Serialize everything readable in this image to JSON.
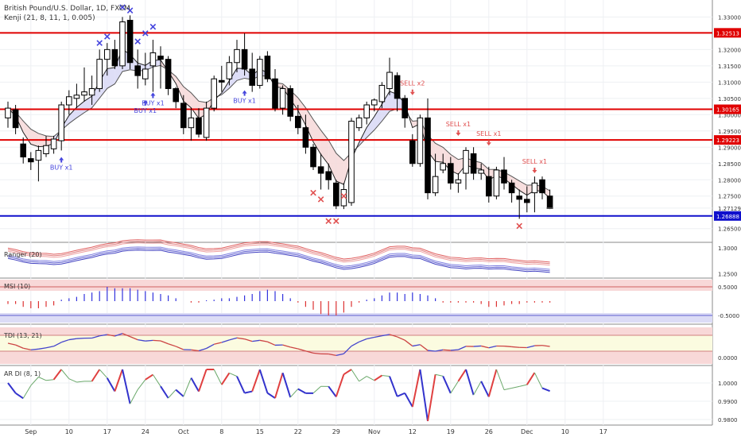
{
  "header": {
    "title": "British Pound/U.S. Dollar, 1D, FXCM",
    "study": "Kenji (21, 8, 11, 1, 0.005)"
  },
  "colors": {
    "up": "#ffffff",
    "down": "#000000",
    "resistance": "#e00000",
    "support": "#1010cc",
    "buy": "#4444dd",
    "sell": "#e05050",
    "bull_cloud": "#d8d8f6",
    "bear_cloud": "#f6d8d8",
    "pos_bar": "#3333dd",
    "neg_bar": "#dd3333"
  },
  "price_axis": {
    "ticks": [
      "1.33000",
      "1.32500",
      "1.32000",
      "1.31500",
      "1.31000",
      "1.30500",
      "1.30000",
      "1.29500",
      "1.29000",
      "1.28500",
      "1.28000",
      "1.27500",
      "1.27129",
      "1.26500"
    ],
    "labels": [
      {
        "text": "1.32513",
        "color": "#e00000"
      },
      {
        "text": "1.30165",
        "color": "#e00000"
      },
      {
        "text": "1.29223",
        "color": "#e00000"
      },
      {
        "text": "1.26888",
        "color": "#1010cc"
      }
    ]
  },
  "x_axis": {
    "ticks": [
      "Sep",
      "10",
      "17",
      "24",
      "Oct",
      "8",
      "15",
      "22",
      "29",
      "Nov",
      "12",
      "19",
      "26",
      "Dec",
      "10",
      "17"
    ]
  },
  "panels": {
    "ranger": {
      "title": "Ranger (20)",
      "ticks": [
        "1.3000",
        "1.2500"
      ]
    },
    "msi": {
      "title": "MSI (10)",
      "ticks": [
        "0.5000",
        "-0.5000"
      ]
    },
    "tdi": {
      "title": "TDI (13, 21)",
      "ticks": [
        "0.0000"
      ]
    },
    "ardi": {
      "title": "AR DI (8, 1)",
      "ticks": [
        "1.0000",
        "0.9900",
        "0.9800"
      ]
    }
  },
  "chart_data": {
    "type": "candlestick",
    "title": "British Pound/U.S. Dollar, 1D, FXCM",
    "y_range": [
      1.262,
      1.334
    ],
    "levels": [
      {
        "value": 1.32513,
        "kind": "resistance"
      },
      {
        "value": 1.30165,
        "kind": "resistance"
      },
      {
        "value": 1.29223,
        "kind": "resistance"
      },
      {
        "value": 1.26888,
        "kind": "support"
      }
    ],
    "last_price": 1.27129,
    "candles": [
      {
        "o": 1.299,
        "h": 1.304,
        "l": 1.296,
        "c": 1.302
      },
      {
        "o": 1.3015,
        "h": 1.303,
        "l": 1.294,
        "c": 1.296
      },
      {
        "o": 1.291,
        "h": 1.293,
        "l": 1.285,
        "c": 1.287
      },
      {
        "o": 1.2865,
        "h": 1.2885,
        "l": 1.283,
        "c": 1.2855
      },
      {
        "o": 1.286,
        "h": 1.2905,
        "l": 1.2795,
        "c": 1.289
      },
      {
        "o": 1.288,
        "h": 1.2935,
        "l": 1.287,
        "c": 1.2905
      },
      {
        "o": 1.2895,
        "h": 1.2935,
        "l": 1.288,
        "c": 1.2925
      },
      {
        "o": 1.292,
        "h": 1.304,
        "l": 1.289,
        "c": 1.303
      },
      {
        "o": 1.303,
        "h": 1.3075,
        "l": 1.3,
        "c": 1.3055
      },
      {
        "o": 1.305,
        "h": 1.3095,
        "l": 1.302,
        "c": 1.306
      },
      {
        "o": 1.306,
        "h": 1.3145,
        "l": 1.304,
        "c": 1.307
      },
      {
        "o": 1.306,
        "h": 1.312,
        "l": 1.303,
        "c": 1.308
      },
      {
        "o": 1.308,
        "h": 1.32,
        "l": 1.307,
        "c": 1.317
      },
      {
        "o": 1.317,
        "h": 1.322,
        "l": 1.312,
        "c": 1.32
      },
      {
        "o": 1.32,
        "h": 1.323,
        "l": 1.314,
        "c": 1.315
      },
      {
        "o": 1.315,
        "h": 1.33,
        "l": 1.314,
        "c": 1.3285
      },
      {
        "o": 1.329,
        "h": 1.3305,
        "l": 1.314,
        "c": 1.316
      },
      {
        "o": 1.315,
        "h": 1.32,
        "l": 1.308,
        "c": 1.312
      },
      {
        "o": 1.311,
        "h": 1.319,
        "l": 1.309,
        "c": 1.314
      },
      {
        "o": 1.315,
        "h": 1.323,
        "l": 1.307,
        "c": 1.319
      },
      {
        "o": 1.318,
        "h": 1.321,
        "l": 1.308,
        "c": 1.317
      },
      {
        "o": 1.317,
        "h": 1.318,
        "l": 1.306,
        "c": 1.308
      },
      {
        "o": 1.308,
        "h": 1.3085,
        "l": 1.302,
        "c": 1.304
      },
      {
        "o": 1.3035,
        "h": 1.306,
        "l": 1.294,
        "c": 1.296
      },
      {
        "o": 1.296,
        "h": 1.302,
        "l": 1.292,
        "c": 1.299
      },
      {
        "o": 1.299,
        "h": 1.302,
        "l": 1.293,
        "c": 1.294
      },
      {
        "o": 1.293,
        "h": 1.304,
        "l": 1.292,
        "c": 1.302
      },
      {
        "o": 1.302,
        "h": 1.312,
        "l": 1.301,
        "c": 1.311
      },
      {
        "o": 1.3105,
        "h": 1.315,
        "l": 1.307,
        "c": 1.31
      },
      {
        "o": 1.311,
        "h": 1.318,
        "l": 1.309,
        "c": 1.316
      },
      {
        "o": 1.316,
        "h": 1.323,
        "l": 1.313,
        "c": 1.32
      },
      {
        "o": 1.32,
        "h": 1.325,
        "l": 1.312,
        "c": 1.314
      },
      {
        "o": 1.314,
        "h": 1.319,
        "l": 1.307,
        "c": 1.309
      },
      {
        "o": 1.309,
        "h": 1.318,
        "l": 1.308,
        "c": 1.317
      },
      {
        "o": 1.318,
        "h": 1.3195,
        "l": 1.31,
        "c": 1.311
      },
      {
        "o": 1.311,
        "h": 1.314,
        "l": 1.301,
        "c": 1.302
      },
      {
        "o": 1.302,
        "h": 1.309,
        "l": 1.3,
        "c": 1.308
      },
      {
        "o": 1.308,
        "h": 1.309,
        "l": 1.298,
        "c": 1.2995
      },
      {
        "o": 1.2995,
        "h": 1.303,
        "l": 1.294,
        "c": 1.296
      },
      {
        "o": 1.296,
        "h": 1.3,
        "l": 1.288,
        "c": 1.29
      },
      {
        "o": 1.29,
        "h": 1.291,
        "l": 1.283,
        "c": 1.284
      },
      {
        "o": 1.284,
        "h": 1.288,
        "l": 1.277,
        "c": 1.282
      },
      {
        "o": 1.2825,
        "h": 1.285,
        "l": 1.277,
        "c": 1.28
      },
      {
        "o": 1.279,
        "h": 1.28,
        "l": 1.271,
        "c": 1.272
      },
      {
        "o": 1.272,
        "h": 1.279,
        "l": 1.271,
        "c": 1.277
      },
      {
        "o": 1.273,
        "h": 1.299,
        "l": 1.272,
        "c": 1.298
      },
      {
        "o": 1.296,
        "h": 1.3,
        "l": 1.295,
        "c": 1.299
      },
      {
        "o": 1.299,
        "h": 1.304,
        "l": 1.297,
        "c": 1.303
      },
      {
        "o": 1.303,
        "h": 1.305,
        "l": 1.301,
        "c": 1.3045
      },
      {
        "o": 1.304,
        "h": 1.31,
        "l": 1.302,
        "c": 1.309
      },
      {
        "o": 1.308,
        "h": 1.3175,
        "l": 1.306,
        "c": 1.313
      },
      {
        "o": 1.312,
        "h": 1.313,
        "l": 1.301,
        "c": 1.305
      },
      {
        "o": 1.305,
        "h": 1.306,
        "l": 1.296,
        "c": 1.299
      },
      {
        "o": 1.292,
        "h": 1.294,
        "l": 1.284,
        "c": 1.285
      },
      {
        "o": 1.285,
        "h": 1.3,
        "l": 1.284,
        "c": 1.299
      },
      {
        "o": 1.299,
        "h": 1.305,
        "l": 1.274,
        "c": 1.276
      },
      {
        "o": 1.276,
        "h": 1.288,
        "l": 1.275,
        "c": 1.281
      },
      {
        "o": 1.283,
        "h": 1.288,
        "l": 1.282,
        "c": 1.285
      },
      {
        "o": 1.285,
        "h": 1.287,
        "l": 1.277,
        "c": 1.279
      },
      {
        "o": 1.279,
        "h": 1.282,
        "l": 1.276,
        "c": 1.28
      },
      {
        "o": 1.282,
        "h": 1.29,
        "l": 1.277,
        "c": 1.289
      },
      {
        "o": 1.288,
        "h": 1.29,
        "l": 1.28,
        "c": 1.282
      },
      {
        "o": 1.282,
        "h": 1.285,
        "l": 1.28,
        "c": 1.283
      },
      {
        "o": 1.281,
        "h": 1.284,
        "l": 1.273,
        "c": 1.275
      },
      {
        "o": 1.275,
        "h": 1.284,
        "l": 1.274,
        "c": 1.283
      },
      {
        "o": 1.283,
        "h": 1.287,
        "l": 1.277,
        "c": 1.279
      },
      {
        "o": 1.279,
        "h": 1.28,
        "l": 1.273,
        "c": 1.276
      },
      {
        "o": 1.275,
        "h": 1.277,
        "l": 1.268,
        "c": 1.274
      },
      {
        "o": 1.274,
        "h": 1.278,
        "l": 1.27,
        "c": 1.273
      },
      {
        "o": 1.276,
        "h": 1.281,
        "l": 1.27,
        "c": 1.279
      },
      {
        "o": 1.28,
        "h": 1.281,
        "l": 1.274,
        "c": 1.276
      },
      {
        "o": 1.275,
        "h": 1.277,
        "l": 1.271,
        "c": 1.2713
      }
    ],
    "annotations": [
      {
        "text": "BUY x1",
        "bar": 7,
        "price": 1.287,
        "type": "buy",
        "pos": "below"
      },
      {
        "text": "BUY x1",
        "bar": 18,
        "price": 1.3045,
        "type": "buy",
        "pos": "below"
      },
      {
        "text": "BUY x1",
        "bar": 19,
        "price": 1.3068,
        "type": "buy",
        "pos": "below"
      },
      {
        "text": "BUY x1",
        "bar": 31,
        "price": 1.3075,
        "type": "buy",
        "pos": "below"
      },
      {
        "text": "SELL x2",
        "bar": 53,
        "price": 1.306,
        "type": "sell",
        "pos": "above"
      },
      {
        "text": "SELL x1",
        "bar": 59,
        "price": 1.2935,
        "type": "sell",
        "pos": "above"
      },
      {
        "text": "SELL x1",
        "bar": 63,
        "price": 1.2905,
        "type": "sell",
        "pos": "above"
      },
      {
        "text": "SELL x1",
        "bar": 69,
        "price": 1.282,
        "type": "sell",
        "pos": "above"
      }
    ],
    "x_markers": [
      {
        "bar": 12,
        "price": 1.322,
        "type": "buy"
      },
      {
        "bar": 13,
        "price": 1.324,
        "type": "buy"
      },
      {
        "bar": 15,
        "price": 1.333,
        "type": "buy"
      },
      {
        "bar": 16,
        "price": 1.332,
        "type": "buy"
      },
      {
        "bar": 17,
        "price": 1.3225,
        "type": "buy"
      },
      {
        "bar": 18,
        "price": 1.325,
        "type": "buy"
      },
      {
        "bar": 19,
        "price": 1.327,
        "type": "buy"
      },
      {
        "bar": 40,
        "price": 1.276,
        "type": "sell"
      },
      {
        "bar": 41,
        "price": 1.274,
        "type": "sell"
      },
      {
        "bar": 42,
        "price": 1.2673,
        "type": "sell"
      },
      {
        "bar": 43,
        "price": 1.2673,
        "type": "sell"
      },
      {
        "bar": 44,
        "price": 1.275,
        "type": "sell"
      },
      {
        "bar": 67,
        "price": 1.2658,
        "type": "sell"
      }
    ],
    "msi": [
      -0.1,
      -0.1,
      -0.2,
      -0.25,
      -0.25,
      -0.2,
      -0.15,
      0.05,
      0.1,
      0.15,
      0.25,
      0.3,
      0.35,
      0.5,
      0.45,
      0.45,
      0.45,
      0.4,
      0.35,
      0.3,
      0.25,
      0.2,
      0.1,
      0.0,
      -0.05,
      -0.05,
      0.03,
      0.05,
      0.1,
      0.1,
      0.15,
      0.2,
      0.25,
      0.35,
      0.4,
      0.35,
      0.25,
      0.1,
      -0.05,
      -0.2,
      -0.3,
      -0.45,
      -0.5,
      -0.5,
      -0.4,
      -0.2,
      -0.05,
      0.05,
      0.1,
      0.2,
      0.3,
      0.3,
      0.25,
      0.3,
      0.25,
      0.2,
      0.1,
      -0.05,
      -0.05,
      -0.05,
      -0.05,
      -0.05,
      -0.1,
      -0.2,
      -0.2,
      -0.15,
      -0.1,
      -0.1,
      -0.05,
      -0.05,
      -0.05,
      -0.05
    ]
  }
}
